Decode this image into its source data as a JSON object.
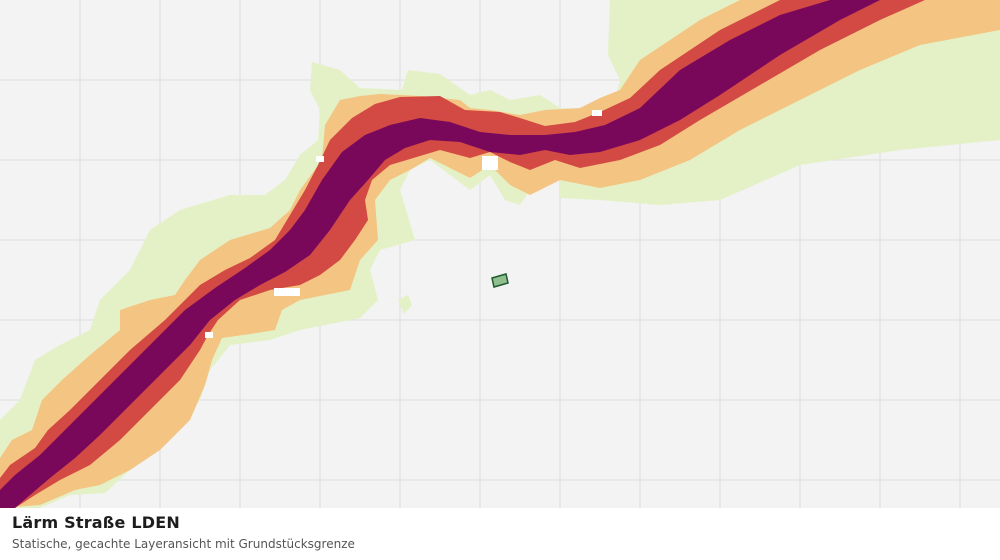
{
  "map": {
    "layer_name": "Lärm Straße LDEN",
    "colors": {
      "background": "#f2f3f2",
      "grid": "#dcdedc",
      "band_outer": "#e4f1c6",
      "band_3": "#f4c483",
      "band_2": "#d24a43",
      "band_core": "#79085b",
      "parcel_fill": "#8fbf8f",
      "parcel_stroke": "#1f5a2f"
    },
    "marker": "parcel-boundary"
  },
  "caption": {
    "title": "Lärm Straße LDEN",
    "subtitle": "Statische, gecachte Layeransicht mit Grundstücksgrenze"
  }
}
